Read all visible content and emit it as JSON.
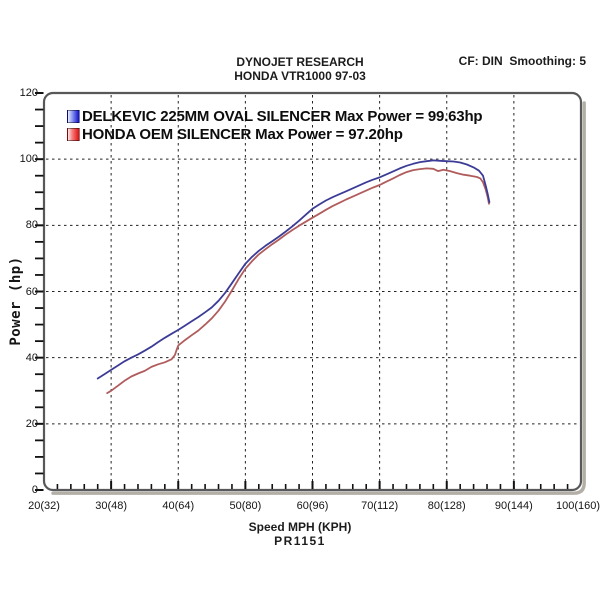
{
  "header": {
    "title_line1": "DYNOJET RESEARCH",
    "title_line2": "HONDA VTR1000 97-03",
    "correction_info": "CF: DIN  Smoothing: 5"
  },
  "footer": {
    "xaxis_title": "Speed MPH (KPH)",
    "run_id": "PR1151"
  },
  "chart_data": {
    "type": "line",
    "title": "DYNOJET RESEARCH — HONDA VTR1000 97-03",
    "xlabel": "Speed MPH (KPH)",
    "ylabel": "Power (hp)",
    "xlim": [
      20,
      100
    ],
    "ylim": [
      0,
      120
    ],
    "grid": "dashed, at every major tick",
    "legend_position": "top-left inside plot",
    "xticks_major": [
      20,
      30,
      40,
      50,
      60,
      70,
      80,
      90,
      100
    ],
    "xtick_labels": [
      "20(32)",
      "30(48)",
      "40(64)",
      "50(80)",
      "60(96)",
      "70(112)",
      "80(128)",
      "90(144)",
      "100(160)"
    ],
    "xticks_minor_step": 2,
    "yticks_major": [
      0,
      20,
      40,
      60,
      80,
      100,
      120
    ],
    "ytick_labels": [
      "0",
      "20",
      "40",
      "60",
      "80",
      "100",
      "120"
    ],
    "yticks_minor_step": 5,
    "series": [
      {
        "name": "DELKEVIC 225MM OVAL SILENCER",
        "label": "DELKEVIC 225MM OVAL SILENCER Max Power = 99.63hp",
        "max_power_hp": 99.63,
        "color": "#3c3c96",
        "swatch_color": "#0d0dd2",
        "points": [
          [
            28,
            33.7
          ],
          [
            29,
            35
          ],
          [
            30,
            36.3
          ],
          [
            31,
            37.6
          ],
          [
            32,
            38.9
          ],
          [
            33,
            40
          ],
          [
            34,
            41
          ],
          [
            35,
            42.1
          ],
          [
            36,
            43.3
          ],
          [
            37,
            44.7
          ],
          [
            38,
            46
          ],
          [
            39,
            47.2
          ],
          [
            40,
            48.4
          ],
          [
            41,
            49.7
          ],
          [
            42,
            51
          ],
          [
            43,
            52.3
          ],
          [
            44,
            53.7
          ],
          [
            45,
            55.2
          ],
          [
            46,
            57.2
          ],
          [
            47,
            59.6
          ],
          [
            48,
            62.5
          ],
          [
            49,
            65.5
          ],
          [
            50,
            68.4
          ],
          [
            51,
            70.5
          ],
          [
            52,
            72.3
          ],
          [
            53,
            73.8
          ],
          [
            54,
            75.2
          ],
          [
            55,
            76.6
          ],
          [
            56,
            78.1
          ],
          [
            57,
            79.7
          ],
          [
            58,
            81.4
          ],
          [
            59,
            83.2
          ],
          [
            60,
            85
          ],
          [
            61,
            86.3
          ],
          [
            62,
            87.5
          ],
          [
            63,
            88.5
          ],
          [
            64,
            89.4
          ],
          [
            65,
            90.3
          ],
          [
            66,
            91.2
          ],
          [
            67,
            92.1
          ],
          [
            68,
            93
          ],
          [
            69,
            93.8
          ],
          [
            70,
            94.5
          ],
          [
            71,
            95.4
          ],
          [
            72,
            96.3
          ],
          [
            73,
            97.2
          ],
          [
            74,
            98
          ],
          [
            75,
            98.6
          ],
          [
            76,
            99.1
          ],
          [
            77,
            99.4
          ],
          [
            78,
            99.63
          ],
          [
            79,
            99.5
          ],
          [
            80,
            99.4
          ],
          [
            81,
            99.3
          ],
          [
            82,
            99
          ],
          [
            83,
            98.4
          ],
          [
            84,
            97.5
          ],
          [
            84.8,
            96.5
          ],
          [
            85.4,
            95
          ],
          [
            85.8,
            92
          ],
          [
            86.1,
            89.5
          ],
          [
            86.35,
            87
          ]
        ]
      },
      {
        "name": "HONDA OEM SILENCER",
        "label": "HONDA OEM SILENCER Max Power = 97.20hp",
        "max_power_hp": 97.2,
        "color": "#b05c5c",
        "swatch_color": "#e40b0b",
        "points": [
          [
            29.4,
            29.3
          ],
          [
            30,
            30
          ],
          [
            31,
            31.5
          ],
          [
            32,
            33
          ],
          [
            33,
            34.3
          ],
          [
            34,
            35.2
          ],
          [
            35,
            36
          ],
          [
            36,
            37.2
          ],
          [
            37,
            38
          ],
          [
            38,
            38.6
          ],
          [
            39,
            39.5
          ],
          [
            39.5,
            40.8
          ],
          [
            39.8,
            42.6
          ],
          [
            40,
            43.7
          ],
          [
            41,
            45.3
          ],
          [
            42,
            46.8
          ],
          [
            43,
            48.2
          ],
          [
            44,
            50
          ],
          [
            45,
            51.9
          ],
          [
            46,
            54.2
          ],
          [
            47,
            57
          ],
          [
            48,
            60.3
          ],
          [
            49,
            63.8
          ],
          [
            50,
            66.9
          ],
          [
            51,
            69.2
          ],
          [
            52,
            71.2
          ],
          [
            53,
            72.8
          ],
          [
            54,
            74.3
          ],
          [
            55,
            75.7
          ],
          [
            56,
            77.2
          ],
          [
            57,
            78.6
          ],
          [
            58,
            79.9
          ],
          [
            59,
            81.1
          ],
          [
            60,
            82.3
          ],
          [
            61,
            83.5
          ],
          [
            62,
            84.7
          ],
          [
            63,
            85.8
          ],
          [
            64,
            86.8
          ],
          [
            65,
            87.8
          ],
          [
            66,
            88.7
          ],
          [
            67,
            89.6
          ],
          [
            68,
            90.5
          ],
          [
            69,
            91.4
          ],
          [
            70,
            92.2
          ],
          [
            71,
            93.2
          ],
          [
            72,
            94.2
          ],
          [
            73,
            95.2
          ],
          [
            74,
            96.1
          ],
          [
            75,
            96.7
          ],
          [
            76,
            97
          ],
          [
            77,
            97.2
          ],
          [
            78,
            97.1
          ],
          [
            78.7,
            96.4
          ],
          [
            79.5,
            96.8
          ],
          [
            80.5,
            96.4
          ],
          [
            81.5,
            95.8
          ],
          [
            82.5,
            95.3
          ],
          [
            83.5,
            95
          ],
          [
            84.5,
            94.6
          ],
          [
            85,
            94.2
          ],
          [
            85.4,
            93
          ],
          [
            85.8,
            90.8
          ],
          [
            86.1,
            88.5
          ],
          [
            86.3,
            86.5
          ]
        ]
      }
    ],
    "style": {
      "grid_color": "#222222",
      "frame_color": "#58585a",
      "shadow_color": "#b3afa7",
      "tick_color": "#111111"
    }
  }
}
